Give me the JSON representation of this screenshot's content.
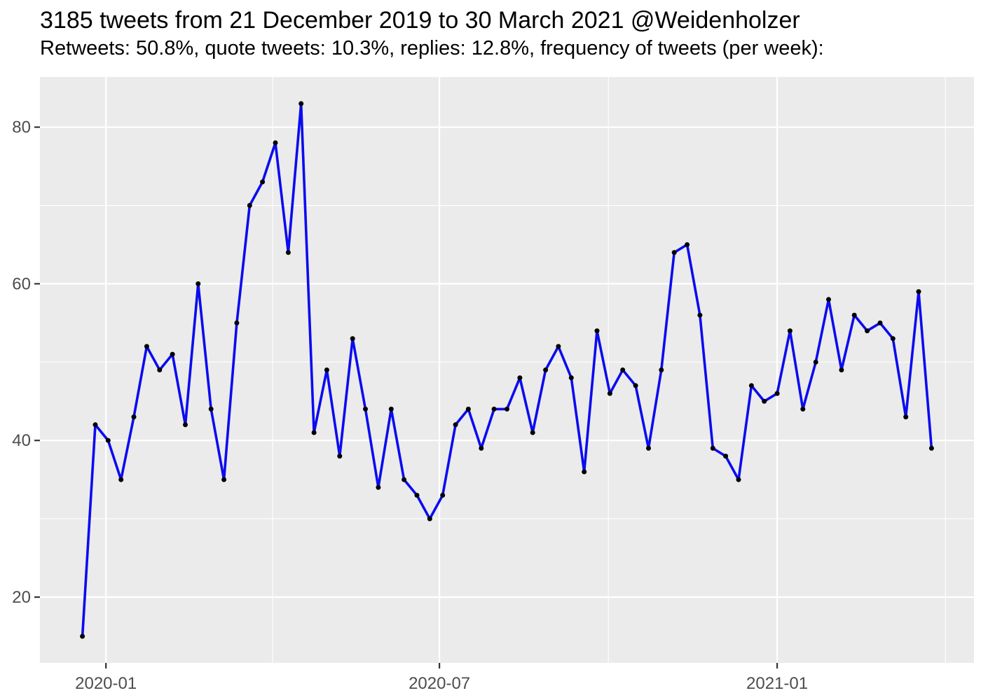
{
  "chart_data": {
    "type": "line",
    "title": "3185 tweets from 21 December 2019 to 30 March 2021 @Weidenholzer",
    "subtitle": "Retweets: 50.8%, quote tweets: 10.3%, replies: 12.8%, frequency of tweets (per week):",
    "x_unit": "week_index",
    "x": [
      0,
      1,
      2,
      3,
      4,
      5,
      6,
      7,
      8,
      9,
      10,
      11,
      12,
      13,
      14,
      15,
      16,
      17,
      18,
      19,
      20,
      21,
      22,
      23,
      24,
      25,
      26,
      27,
      28,
      29,
      30,
      31,
      32,
      33,
      34,
      35,
      36,
      37,
      38,
      39,
      40,
      41,
      42,
      43,
      44,
      45,
      46,
      47,
      48,
      49,
      50,
      51,
      52,
      53,
      54,
      55,
      56,
      57,
      58,
      59,
      60,
      61,
      62,
      63,
      64,
      65,
      66
    ],
    "series": [
      {
        "name": "tweets-per-week",
        "values": [
          15,
          42,
          40,
          35,
          43,
          52,
          49,
          51,
          42,
          60,
          44,
          35,
          55,
          70,
          73,
          78,
          64,
          83,
          41,
          49,
          38,
          53,
          44,
          34,
          44,
          35,
          33,
          30,
          33,
          42,
          44,
          39,
          44,
          44,
          48,
          41,
          49,
          52,
          48,
          36,
          54,
          46,
          49,
          47,
          39,
          49,
          64,
          65,
          56,
          39,
          38,
          35,
          47,
          45,
          46,
          54,
          44,
          50,
          58,
          49,
          56,
          54,
          55,
          53,
          43,
          59,
          39
        ]
      }
    ],
    "total_tweets": "3185",
    "x_tick_labels": [
      "2020-01",
      "2020-07",
      "2021-01"
    ],
    "x_tick_weeks": [
      1.83,
      27.75,
      54.0
    ],
    "x_minor_weeks": [
      14.79,
      40.88,
      67.08
    ],
    "y_ticks": [
      20,
      40,
      60,
      80
    ],
    "y_minor_ticks": [
      30,
      50,
      70
    ],
    "ylim": [
      11.6,
      86.4
    ],
    "xlim_weeks": [
      -3.3,
      69.3
    ],
    "grid": "on",
    "legend": "none",
    "colors": {
      "line": "#0b0bf0",
      "point": "#000000",
      "panel_background": "#ebebeb",
      "gridline": "#ffffff",
      "tick_text": "#4d4d4d",
      "tick_mark": "#333333",
      "title_text": "#000000"
    }
  }
}
